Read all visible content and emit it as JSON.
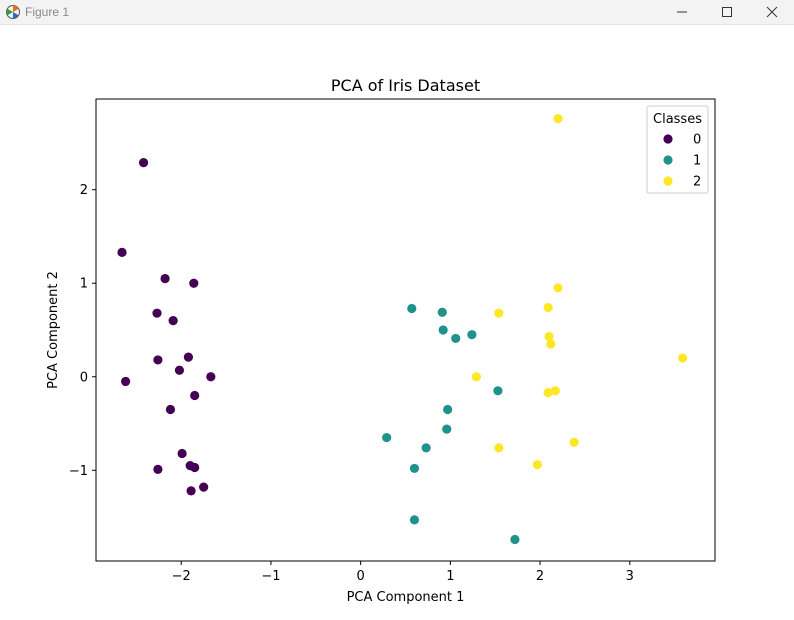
{
  "window": {
    "title": "Figure 1",
    "icons": [
      "matplotlib-logo-icon",
      "minimize-icon",
      "maximize-icon",
      "close-icon"
    ]
  },
  "chart_data": {
    "type": "scatter",
    "title": "PCA of Iris Dataset",
    "xlabel": "PCA Component 1",
    "ylabel": "PCA Component 2",
    "xlim": [
      -2.95,
      3.95
    ],
    "ylim": [
      -1.97,
      2.97
    ],
    "xticks": [
      -2,
      -1,
      0,
      1,
      2,
      3
    ],
    "yticks": [
      -1,
      0,
      1,
      2
    ],
    "grid": false,
    "legend": {
      "title": "Classes",
      "placement": "top-right"
    },
    "series": [
      {
        "name": "0",
        "color": "#440154",
        "points": [
          [
            -2.42,
            2.29
          ],
          [
            -2.66,
            1.33
          ],
          [
            -2.18,
            1.05
          ],
          [
            -1.86,
            1.0
          ],
          [
            -2.27,
            0.68
          ],
          [
            -2.09,
            0.6
          ],
          [
            -1.92,
            0.21
          ],
          [
            -2.26,
            0.18
          ],
          [
            -2.02,
            0.07
          ],
          [
            -1.67,
            0.0
          ],
          [
            -2.62,
            -0.05
          ],
          [
            -1.85,
            -0.2
          ],
          [
            -2.12,
            -0.35
          ],
          [
            -1.99,
            -0.82
          ],
          [
            -1.9,
            -0.95
          ],
          [
            -1.85,
            -0.97
          ],
          [
            -2.26,
            -0.99
          ],
          [
            -1.75,
            -1.18
          ],
          [
            -1.89,
            -1.22
          ]
        ]
      },
      {
        "name": "1",
        "color": "#21918c",
        "points": [
          [
            0.57,
            0.73
          ],
          [
            0.91,
            0.69
          ],
          [
            0.92,
            0.5
          ],
          [
            1.06,
            0.41
          ],
          [
            1.24,
            0.45
          ],
          [
            1.53,
            -0.15
          ],
          [
            0.97,
            -0.35
          ],
          [
            0.96,
            -0.56
          ],
          [
            0.29,
            -0.65
          ],
          [
            0.73,
            -0.76
          ],
          [
            0.6,
            -0.98
          ],
          [
            0.6,
            -1.53
          ],
          [
            1.72,
            -1.74
          ]
        ]
      },
      {
        "name": "2",
        "color": "#fde725",
        "points": [
          [
            2.2,
            2.76
          ],
          [
            2.2,
            0.95
          ],
          [
            2.09,
            0.74
          ],
          [
            1.54,
            0.68
          ],
          [
            2.1,
            0.43
          ],
          [
            2.12,
            0.35
          ],
          [
            3.59,
            0.2
          ],
          [
            1.29,
            0.0
          ],
          [
            2.17,
            -0.15
          ],
          [
            2.09,
            -0.17
          ],
          [
            2.38,
            -0.7
          ],
          [
            1.54,
            -0.76
          ],
          [
            1.97,
            -0.94
          ]
        ]
      }
    ]
  }
}
